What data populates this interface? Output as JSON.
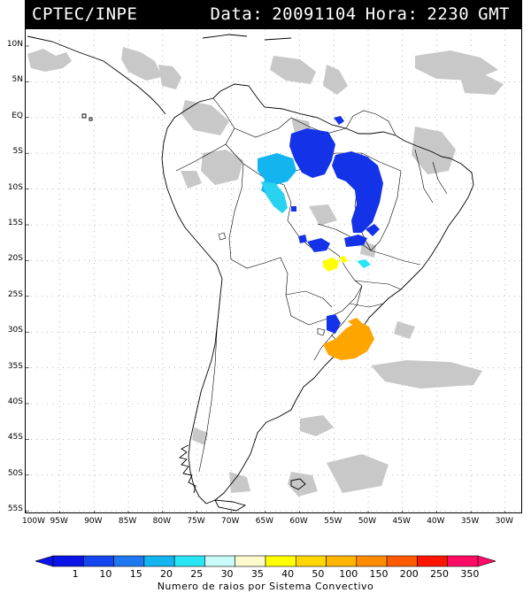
{
  "header": {
    "source": "CPTEC/INPE",
    "date_label": "Data:",
    "date_value": "20091104",
    "hour_label": "Hora:",
    "hour_value": "2230",
    "tz": "GMT"
  },
  "lat_labels": [
    "10N",
    "5N",
    "EQ",
    "5S",
    "10S",
    "15S",
    "20S",
    "25S",
    "30S",
    "35S",
    "40S",
    "45S",
    "50S",
    "55S"
  ],
  "lon_labels": [
    "100W",
    "95W",
    "90W",
    "85W",
    "80W",
    "75W",
    "70W",
    "65W",
    "60W",
    "55W",
    "50W",
    "45W",
    "40W",
    "35W",
    "30W"
  ],
  "scale": {
    "labels": [
      "1",
      "10",
      "15",
      "20",
      "25",
      "30",
      "35",
      "40",
      "50",
      "100",
      "150",
      "200",
      "250",
      "350"
    ],
    "colors": [
      "#0a14e8",
      "#1446f0",
      "#1e78f0",
      "#14b4f0",
      "#28e6f5",
      "#c8fafa",
      "#fffacc",
      "#ffff00",
      "#ffd700",
      "#ffb400",
      "#ff8c00",
      "#ff5a00",
      "#ff1400",
      "#ff0a64"
    ],
    "title": "Numero de raios por Sistema Convectivo"
  },
  "colors": {
    "land_outline": "#000000",
    "cloud_gray": "#c4c4c4",
    "grid": "#888888"
  }
}
